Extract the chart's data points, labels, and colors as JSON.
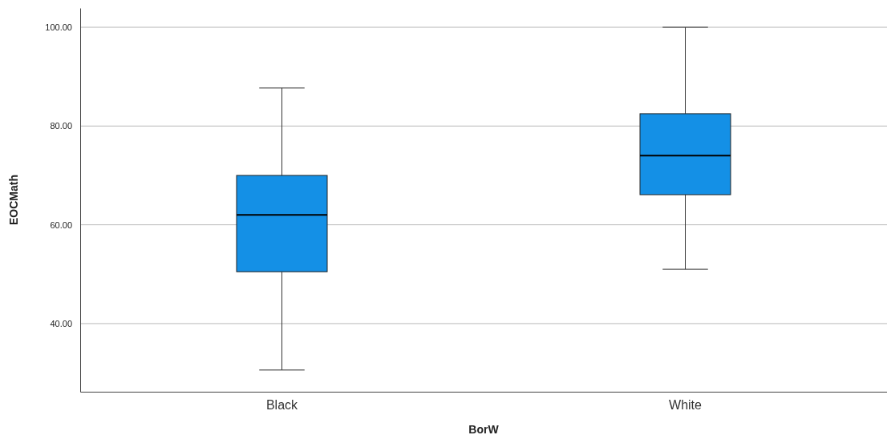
{
  "chart_data": {
    "type": "box",
    "xlabel": "BorW",
    "ylabel": "EOCMath",
    "categories": [
      "Black",
      "White"
    ],
    "boxes": [
      {
        "low": 30.6,
        "q1": 50.5,
        "median": 62.0,
        "q3": 70.0,
        "high": 87.7
      },
      {
        "low": 51.0,
        "q1": 66.1,
        "median": 74.0,
        "q3": 82.5,
        "high": 100.0
      }
    ],
    "color": "#1490e6",
    "ylim": [
      26.2,
      103.9
    ],
    "yticks": [
      {
        "value": 40,
        "label": "40.00"
      },
      {
        "value": 60,
        "label": "60.00"
      },
      {
        "value": 80,
        "label": "80.00"
      },
      {
        "value": 100,
        "label": "100.00"
      }
    ],
    "grid": "y"
  }
}
